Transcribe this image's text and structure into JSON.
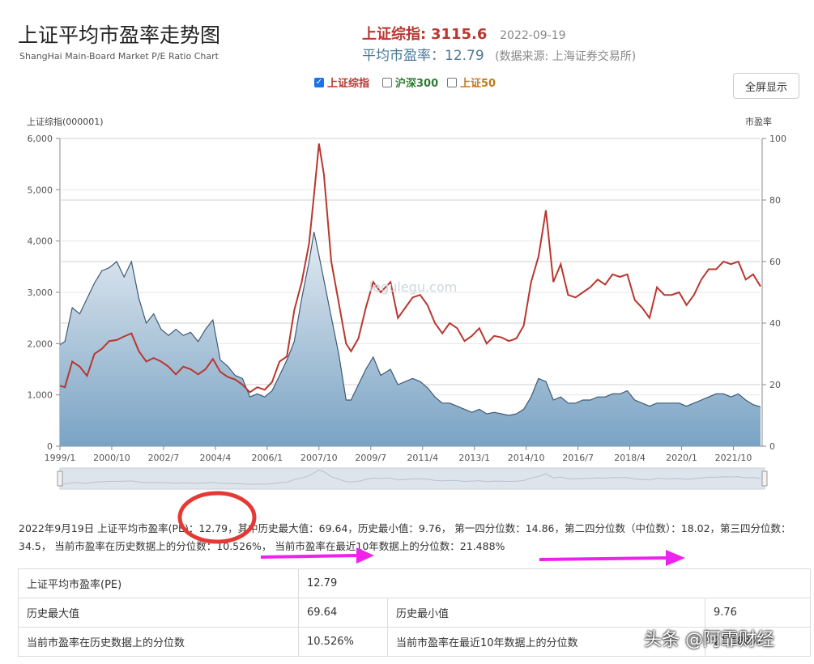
{
  "header": {
    "title": "上证平均市盈率走势图",
    "subtitle": "ShangHai Main-Board Market P/E Ratio Chart",
    "index_label": "上证综指:",
    "index_value": "3115.6",
    "date": "2022-09-19",
    "pe_label": "平均市盈率：",
    "pe_value": "12.79",
    "source": "(数据来源: 上海证券交易所)"
  },
  "legend": [
    {
      "label": "上证综指",
      "checked": true,
      "color": "#b8372f"
    },
    {
      "label": "沪深300",
      "checked": false,
      "color": "#2e7d32"
    },
    {
      "label": "上证50",
      "checked": false,
      "color": "#c07a1c"
    }
  ],
  "fullscreen_label": "全屏显示",
  "chart_data": {
    "type": "line",
    "watermark": "legulegu.com",
    "left_axis_label": "上证综指(000001)",
    "right_axis_label": "市盈率",
    "x_ticks": [
      "1999/1",
      "2000/10",
      "2002/7",
      "2004/4",
      "2006/1",
      "2007/10",
      "2009/7",
      "2011/4",
      "2013/1",
      "2014/10",
      "2016/7",
      "2018/4",
      "2020/1",
      "2021/10"
    ],
    "left_ticks": [
      "0",
      "1,000",
      "2,000",
      "3,000",
      "4,000",
      "5,000",
      "6,000"
    ],
    "right_ticks": [
      "0",
      "20",
      "40",
      "60",
      "80",
      "100"
    ],
    "ylim_left": [
      0,
      6000
    ],
    "ylim_right": [
      0,
      100
    ],
    "x": [
      "1999-01",
      "1999-03",
      "1999-06",
      "1999-09",
      "1999-12",
      "2000-03",
      "2000-06",
      "2000-09",
      "2000-12",
      "2001-03",
      "2001-06",
      "2001-09",
      "2001-12",
      "2002-03",
      "2002-06",
      "2002-09",
      "2002-12",
      "2003-03",
      "2003-06",
      "2003-09",
      "2003-12",
      "2004-03",
      "2004-06",
      "2004-09",
      "2004-12",
      "2005-03",
      "2005-06",
      "2005-09",
      "2005-12",
      "2006-03",
      "2006-06",
      "2006-09",
      "2006-12",
      "2007-03",
      "2007-06",
      "2007-08",
      "2007-10",
      "2007-12",
      "2008-03",
      "2008-06",
      "2008-09",
      "2008-11",
      "2009-02",
      "2009-05",
      "2009-08",
      "2009-11",
      "2010-03",
      "2010-06",
      "2010-09",
      "2010-12",
      "2011-03",
      "2011-06",
      "2011-09",
      "2011-12",
      "2012-03",
      "2012-06",
      "2012-09",
      "2012-12",
      "2013-03",
      "2013-06",
      "2013-09",
      "2013-12",
      "2014-03",
      "2014-06",
      "2014-09",
      "2014-12",
      "2015-03",
      "2015-06",
      "2015-09",
      "2015-12",
      "2016-03",
      "2016-06",
      "2016-09",
      "2016-12",
      "2017-03",
      "2017-06",
      "2017-09",
      "2017-12",
      "2018-03",
      "2018-06",
      "2018-09",
      "2018-12",
      "2019-03",
      "2019-06",
      "2019-09",
      "2019-12",
      "2020-03",
      "2020-06",
      "2020-09",
      "2020-12",
      "2021-03",
      "2021-06",
      "2021-09",
      "2021-12",
      "2022-03",
      "2022-06",
      "2022-09"
    ],
    "series": [
      {
        "name": "上证综指",
        "axis": "left",
        "color": "#b8372f",
        "values": [
          1180,
          1150,
          1650,
          1550,
          1370,
          1800,
          1900,
          2050,
          2070,
          2140,
          2200,
          1850,
          1650,
          1720,
          1650,
          1550,
          1400,
          1550,
          1500,
          1400,
          1500,
          1700,
          1450,
          1350,
          1300,
          1200,
          1050,
          1150,
          1100,
          1250,
          1650,
          1750,
          2650,
          3200,
          3950,
          4900,
          5900,
          5300,
          3600,
          2800,
          2000,
          1850,
          2100,
          2700,
          3200,
          3000,
          3200,
          2500,
          2700,
          2900,
          2950,
          2750,
          2400,
          2200,
          2400,
          2300,
          2050,
          2150,
          2300,
          2000,
          2150,
          2120,
          2050,
          2100,
          2350,
          3200,
          3700,
          4600,
          3200,
          3550,
          2950,
          2900,
          3000,
          3100,
          3250,
          3150,
          3350,
          3300,
          3350,
          2850,
          2700,
          2500,
          3100,
          2950,
          2950,
          3000,
          2750,
          2950,
          3250,
          3450,
          3450,
          3600,
          3550,
          3600,
          3250,
          3350,
          3115
        ]
      },
      {
        "name": "市盈率",
        "axis": "right",
        "color": "#4a6f8e",
        "values": [
          33,
          34,
          45,
          43,
          48,
          53,
          57,
          58,
          60,
          55,
          60,
          48,
          40,
          43,
          38,
          36,
          38,
          36,
          37,
          34,
          38,
          41,
          28,
          26,
          23,
          22,
          16,
          17,
          16,
          18,
          23,
          28,
          34,
          48,
          60,
          69.6,
          62,
          54,
          42,
          30,
          15,
          15,
          20,
          25,
          29,
          23,
          25,
          20,
          21,
          22,
          21,
          19,
          16,
          14,
          14,
          13,
          12,
          11,
          12,
          10.5,
          11,
          10.5,
          10,
          10.5,
          12,
          16,
          22,
          21,
          15,
          16,
          14,
          14,
          15,
          15,
          16,
          16,
          17,
          17,
          18,
          15,
          14,
          13,
          14,
          14,
          14,
          14,
          13,
          14,
          15,
          16,
          17,
          17,
          16,
          17,
          15,
          13.5,
          12.79
        ]
      }
    ]
  },
  "summary_text": "2022年9月19日 上证平均市盈率(PE)：12.79，其中历史最大值：69.64，历史最小值：9.76， 第一四分位数：14.86，第二四分位数（中位数）：18.02，第三四分位数：34.5， 当前市盈率在历史数据上的分位数：10.526%， 当前市盈率在最近10年数据上的分位数：21.488%",
  "table": {
    "pe_label": "上证平均市盈率(PE)",
    "pe_value": "12.79",
    "max_label": "历史最大值",
    "max_value": "69.64",
    "min_label": "历史最小值",
    "min_value": "9.76",
    "pct_hist_label": "当前市盈率在历史数据上的分位数",
    "pct_hist_value": "10.526%",
    "pct_10y_label": "当前市盈率在最近10年数据上的分位数",
    "pct_10y_value": "21.488%"
  },
  "watermark_text": "头条 @阿霏财经",
  "colors": {
    "index_line": "#b8372f",
    "pe_area": "#7aa3c4",
    "annotation_circle": "#e53935",
    "annotation_arrow": "#ee22ee"
  }
}
